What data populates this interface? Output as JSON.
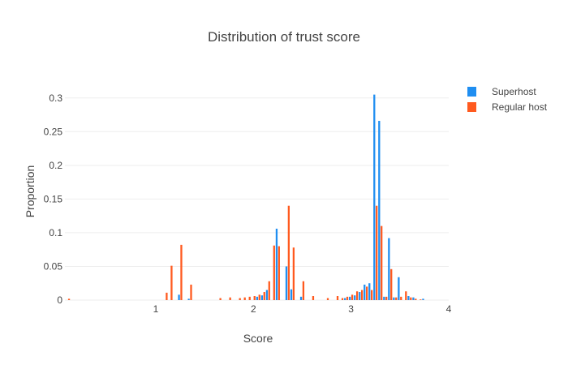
{
  "chart_data": {
    "type": "bar",
    "title": "Distribution of trust score",
    "xlabel": "Score",
    "ylabel": "Proportion",
    "xlim": [
      0.07,
      4.0
    ],
    "ylim": [
      0,
      0.325
    ],
    "grid": true,
    "legend_position": "top-right",
    "x_ticks": [
      {
        "value": 1,
        "label": "1"
      },
      {
        "value": 2,
        "label": "2"
      },
      {
        "value": 3,
        "label": "3"
      },
      {
        "value": 4,
        "label": "4"
      }
    ],
    "y_ticks": [
      {
        "value": 0,
        "label": "0"
      },
      {
        "value": 0.05,
        "label": "0.05"
      },
      {
        "value": 0.1,
        "label": "0.1"
      },
      {
        "value": 0.15,
        "label": "0.15"
      },
      {
        "value": 0.2,
        "label": "0.2"
      },
      {
        "value": 0.25,
        "label": "0.25"
      },
      {
        "value": 0.3,
        "label": "0.3"
      }
    ],
    "series": [
      {
        "name": "Superhost",
        "color": "#1f8ef1",
        "x": [
          1.25,
          1.35,
          2.05,
          2.1,
          2.15,
          2.25,
          2.35,
          2.4,
          2.5,
          2.95,
          3.0,
          3.05,
          3.1,
          3.15,
          3.2,
          3.25,
          3.3,
          3.35,
          3.4,
          3.45,
          3.5,
          3.6,
          3.65,
          3.75
        ],
        "values": [
          0.008,
          0.002,
          0.005,
          0.007,
          0.015,
          0.106,
          0.05,
          0.016,
          0.005,
          0.003,
          0.005,
          0.007,
          0.012,
          0.023,
          0.025,
          0.305,
          0.266,
          0.005,
          0.092,
          0.004,
          0.034,
          0.006,
          0.004,
          0.002
        ]
      },
      {
        "name": "Regular host",
        "color": "#ff5a1f",
        "x": [
          0.1,
          1.1,
          1.15,
          1.25,
          1.35,
          1.65,
          1.75,
          1.85,
          1.9,
          1.95,
          2.0,
          2.05,
          2.1,
          2.15,
          2.2,
          2.25,
          2.35,
          2.4,
          2.5,
          2.6,
          2.75,
          2.85,
          2.9,
          2.95,
          3.0,
          3.05,
          3.1,
          3.15,
          3.2,
          3.25,
          3.3,
          3.35,
          3.4,
          3.45,
          3.5,
          3.55,
          3.6,
          3.65,
          3.7
        ],
        "values": [
          0.002,
          0.011,
          0.051,
          0.082,
          0.023,
          0.003,
          0.004,
          0.003,
          0.004,
          0.005,
          0.006,
          0.008,
          0.012,
          0.028,
          0.081,
          0.08,
          0.14,
          0.078,
          0.028,
          0.006,
          0.003,
          0.006,
          0.003,
          0.005,
          0.008,
          0.013,
          0.015,
          0.02,
          0.015,
          0.14,
          0.11,
          0.005,
          0.046,
          0.004,
          0.005,
          0.013,
          0.004,
          0.002,
          0.001
        ]
      }
    ]
  }
}
